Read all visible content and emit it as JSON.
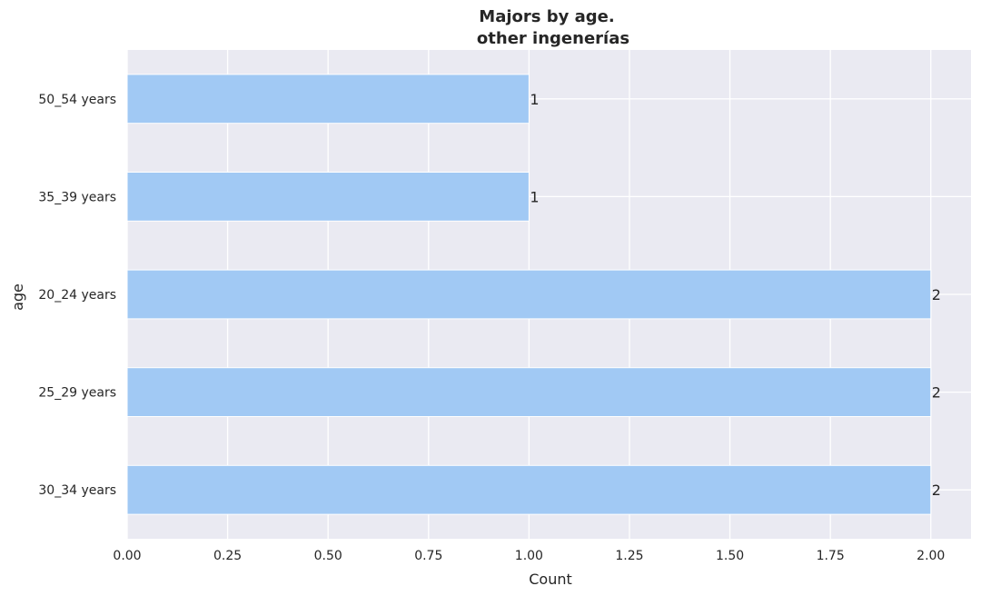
{
  "chart_data": {
    "type": "bar",
    "orientation": "horizontal",
    "title_lines": [
      "Majors by age.",
      "other ingenerías"
    ],
    "xlabel": "Count",
    "ylabel": "age",
    "categories": [
      "50_54 years",
      "35_39 years",
      "20_24 years",
      "25_29 years",
      "30_34 years"
    ],
    "values": [
      1,
      1,
      2,
      2,
      2
    ],
    "data_labels": [
      "1",
      "1",
      "2",
      "2",
      "2"
    ],
    "xlim": [
      0,
      2.1
    ],
    "xticks": [
      0,
      0.25,
      0.5,
      0.75,
      1,
      1.25,
      1.5,
      1.75,
      2
    ],
    "xtick_labels": [
      "0.00",
      "0.25",
      "0.50",
      "0.75",
      "1.00",
      "1.25",
      "1.50",
      "1.75",
      "2.00"
    ],
    "grid": true,
    "colors": {
      "bar": "#a1c9f4",
      "background": "#eaeaf2",
      "grid": "#ffffff",
      "text": "#262626"
    }
  }
}
